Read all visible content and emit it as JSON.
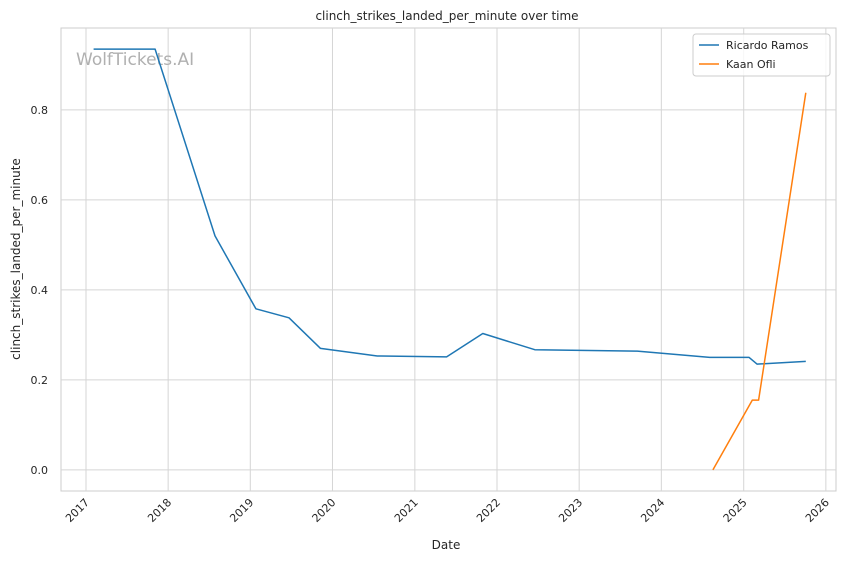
{
  "chart_data": {
    "type": "line",
    "title": "clinch_strikes_landed_per_minute over time",
    "xlabel": "Date",
    "ylabel": "clinch_strikes_landed_per_minute",
    "watermark": "WolfTickets.AI",
    "xlim": [
      "2016-09-12",
      "2026-02-15"
    ],
    "ylim": [
      -0.047,
      0.982
    ],
    "x_ticks": [
      "2017",
      "2018",
      "2019",
      "2020",
      "2021",
      "2022",
      "2023",
      "2024",
      "2025",
      "2026"
    ],
    "y_ticks": [
      "0.0",
      "0.2",
      "0.4",
      "0.6",
      "0.8"
    ],
    "grid": true,
    "legend_position": "top-right",
    "series": [
      {
        "name": "Ricardo Ramos",
        "color": "#1f77b4",
        "points": [
          {
            "x": "2017-02-04",
            "y": 0.935
          },
          {
            "x": "2017-11-04",
            "y": 0.935
          },
          {
            "x": "2018-07-28",
            "y": 0.52
          },
          {
            "x": "2019-01-26",
            "y": 0.358
          },
          {
            "x": "2019-06-22",
            "y": 0.338
          },
          {
            "x": "2019-11-09",
            "y": 0.27
          },
          {
            "x": "2020-07-18",
            "y": 0.253
          },
          {
            "x": "2021-05-22",
            "y": 0.251
          },
          {
            "x": "2021-10-30",
            "y": 0.303
          },
          {
            "x": "2022-06-18",
            "y": 0.267
          },
          {
            "x": "2023-09-16",
            "y": 0.264
          },
          {
            "x": "2024-08-03",
            "y": 0.25
          },
          {
            "x": "2025-01-25",
            "y": 0.25
          },
          {
            "x": "2025-03-01",
            "y": 0.235
          },
          {
            "x": "2025-10-04",
            "y": 0.241
          }
        ]
      },
      {
        "name": "Kaan Ofli",
        "color": "#ff7f0e",
        "points": [
          {
            "x": "2024-08-17",
            "y": 0.0
          },
          {
            "x": "2025-02-08",
            "y": 0.155
          },
          {
            "x": "2025-03-08",
            "y": 0.155
          },
          {
            "x": "2025-10-04",
            "y": 0.838
          }
        ]
      }
    ]
  }
}
